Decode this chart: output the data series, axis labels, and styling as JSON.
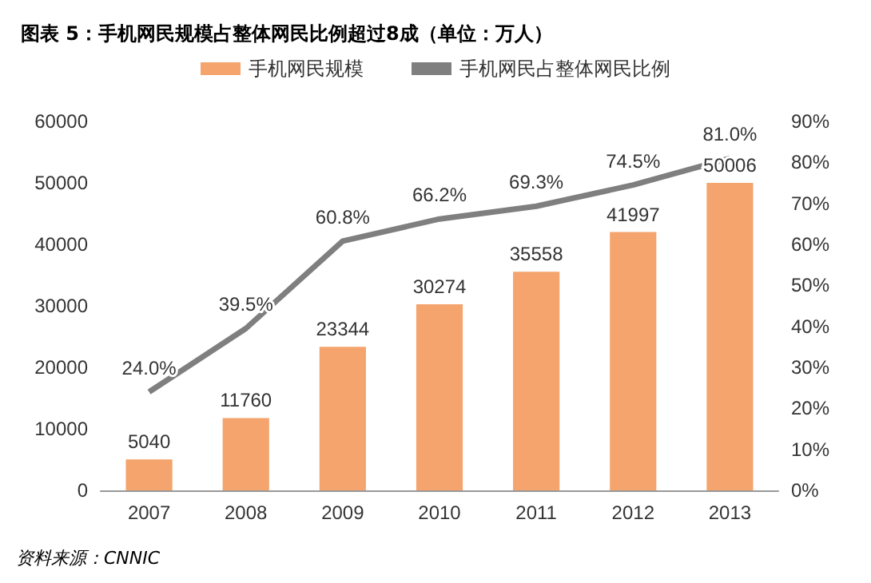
{
  "chart_data": {
    "type": "bar",
    "title": "图表 5：手机网民规模占整体网民比例超过8成（单位：万人）",
    "categories": [
      "2007",
      "2008",
      "2009",
      "2010",
      "2011",
      "2012",
      "2013"
    ],
    "series": [
      {
        "name": "手机网民规模",
        "color": "#f4a46c",
        "values": [
          5040,
          11760,
          23344,
          30274,
          35558,
          41997,
          50006
        ],
        "value_labels": [
          "5040",
          "11760",
          "23344",
          "30274",
          "35558",
          "41997",
          "50006"
        ]
      },
      {
        "name": "手机网民占整体网民比例",
        "type": "line",
        "axis": "y2",
        "color": "#7f7f7f",
        "values": [
          24.0,
          39.5,
          60.8,
          66.2,
          69.3,
          74.5,
          81.0
        ],
        "value_labels": [
          "24.0%",
          "39.5%",
          "60.8%",
          "66.2%",
          "69.3%",
          "74.5%",
          "81.0%"
        ]
      }
    ],
    "ylim": [
      0,
      60000
    ],
    "yticks": [
      0,
      10000,
      20000,
      30000,
      40000,
      50000,
      60000
    ],
    "y2lim": [
      0,
      90
    ],
    "y2ticks": [
      {
        "value": 0,
        "label": "0%"
      },
      {
        "value": 10,
        "label": "10%"
      },
      {
        "value": 20,
        "label": "20%"
      },
      {
        "value": 30,
        "label": "30%"
      },
      {
        "value": 40,
        "label": "40%"
      },
      {
        "value": 50,
        "label": "50%"
      },
      {
        "value": 60,
        "label": "60%"
      },
      {
        "value": 70,
        "label": "70%"
      },
      {
        "value": 80,
        "label": "80%"
      },
      {
        "value": 90,
        "label": "90%"
      }
    ],
    "legend": "top",
    "grid": false,
    "marker": "none",
    "line_style": "solid",
    "annotations": [
      "资料来源：CNNIC"
    ]
  }
}
